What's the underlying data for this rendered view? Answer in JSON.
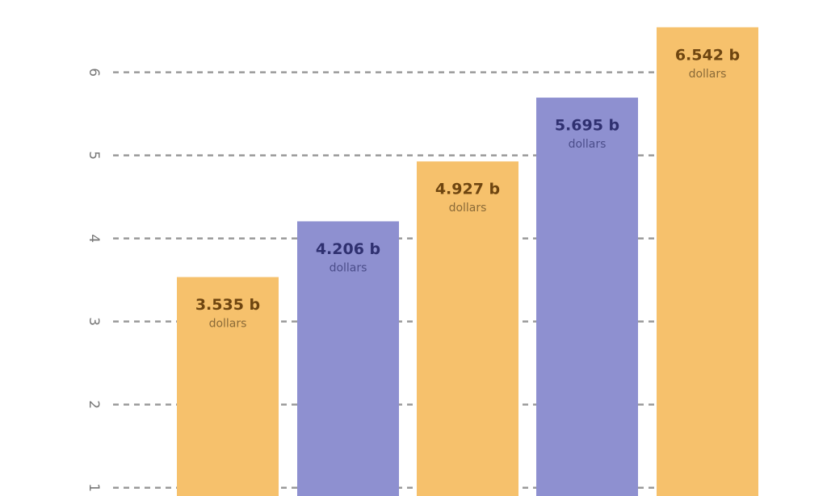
{
  "chart_data": {
    "type": "bar",
    "categories": [
      null,
      null,
      null,
      null,
      null
    ],
    "values": [
      3.535,
      4.206,
      4.927,
      5.695,
      6.542
    ],
    "value_labels": [
      "3.535 b",
      "4.206 b",
      "4.927 b",
      "5.695 b",
      "6.542 b"
    ],
    "unit_label": "dollars",
    "colors": [
      "#f6c16c",
      "#8e90d0",
      "#f6c16c",
      "#8e90d0",
      "#f6c16c"
    ],
    "ylim": [
      0.9,
      6.87
    ],
    "yticks": [
      1,
      2,
      3,
      4,
      5,
      6
    ],
    "grid": true
  }
}
